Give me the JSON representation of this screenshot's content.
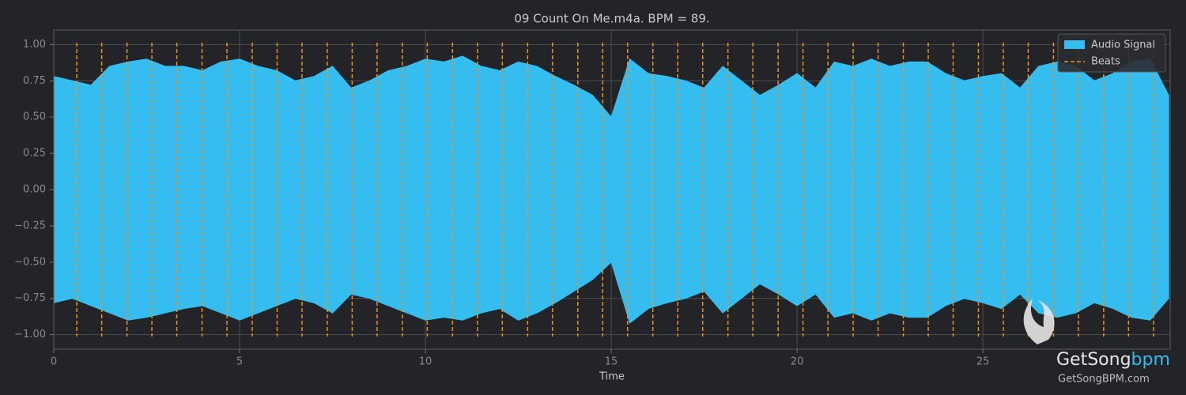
{
  "chart_data": {
    "type": "waveform",
    "title": "09 Count On Me.m4a. BPM =  89.",
    "xlabel": "Time",
    "x": [
      0,
      0.5,
      1,
      1.5,
      2,
      2.5,
      3,
      3.5,
      4,
      4.5,
      5,
      5.5,
      6,
      6.5,
      7,
      7.5,
      8,
      8.5,
      9,
      9.5,
      10,
      10.5,
      11,
      11.5,
      12,
      12.5,
      13,
      13.5,
      14,
      14.5,
      15,
      15.5,
      16,
      16.5,
      17,
      17.5,
      18,
      18.5,
      19,
      19.5,
      20,
      20.5,
      21,
      21.5,
      22,
      22.5,
      23,
      23.5,
      24,
      24.5,
      25,
      25.5,
      26,
      26.5,
      27,
      27.5,
      28,
      28.5,
      29,
      29.5,
      30
    ],
    "series": [
      {
        "name": "Audio Signal",
        "color": "#36bdf0",
        "upper": [
          0.78,
          0.75,
          0.72,
          0.85,
          0.88,
          0.9,
          0.85,
          0.85,
          0.82,
          0.88,
          0.9,
          0.85,
          0.82,
          0.75,
          0.78,
          0.85,
          0.7,
          0.75,
          0.82,
          0.85,
          0.9,
          0.88,
          0.92,
          0.85,
          0.82,
          0.88,
          0.85,
          0.78,
          0.72,
          0.65,
          0.5,
          0.9,
          0.8,
          0.78,
          0.75,
          0.7,
          0.85,
          0.75,
          0.65,
          0.72,
          0.8,
          0.7,
          0.88,
          0.85,
          0.9,
          0.85,
          0.88,
          0.88,
          0.8,
          0.75,
          0.78,
          0.8,
          0.7,
          0.85,
          0.88,
          0.85,
          0.75,
          0.8,
          0.88,
          0.9,
          0.65
        ],
        "lower": [
          -0.78,
          -0.75,
          -0.8,
          -0.85,
          -0.9,
          -0.88,
          -0.85,
          -0.82,
          -0.8,
          -0.85,
          -0.9,
          -0.85,
          -0.8,
          -0.75,
          -0.78,
          -0.85,
          -0.72,
          -0.75,
          -0.8,
          -0.85,
          -0.9,
          -0.88,
          -0.9,
          -0.85,
          -0.82,
          -0.9,
          -0.85,
          -0.78,
          -0.7,
          -0.62,
          -0.5,
          -0.92,
          -0.82,
          -0.78,
          -0.75,
          -0.7,
          -0.85,
          -0.75,
          -0.65,
          -0.72,
          -0.8,
          -0.72,
          -0.88,
          -0.85,
          -0.9,
          -0.85,
          -0.88,
          -0.88,
          -0.8,
          -0.75,
          -0.78,
          -0.82,
          -0.72,
          -0.85,
          -0.88,
          -0.85,
          -0.78,
          -0.82,
          -0.88,
          -0.9,
          -0.75
        ]
      },
      {
        "name": "Beats",
        "color": "#e8931f",
        "beats": [
          0.62,
          1.29,
          1.97,
          2.64,
          3.31,
          3.99,
          4.66,
          5.34,
          6.01,
          6.68,
          7.36,
          8.03,
          8.7,
          9.38,
          10.05,
          10.73,
          11.4,
          12.07,
          12.75,
          13.42,
          14.1,
          14.77,
          15.44,
          16.12,
          16.79,
          17.46,
          18.14,
          18.81,
          19.49,
          20.16,
          20.83,
          21.51,
          22.18,
          22.86,
          23.53,
          24.2,
          24.88,
          25.55,
          26.22,
          26.9,
          27.57,
          28.25,
          28.92,
          29.59
        ]
      }
    ],
    "xlim": [
      0,
      30.04
    ],
    "ylim": [
      -1.1,
      1.1
    ],
    "xticks": [
      0,
      5,
      10,
      15,
      20,
      25
    ],
    "yticks": [
      {
        "value": 1,
        "label": "1.00"
      },
      {
        "value": 0.75,
        "label": "0.75"
      },
      {
        "value": 0.5,
        "label": "0.50"
      },
      {
        "value": 0.25,
        "label": "0.25"
      },
      {
        "value": 0,
        "label": "0.00"
      },
      {
        "value": -0.25,
        "label": "−0.25"
      },
      {
        "value": -0.5,
        "label": "−0.50"
      },
      {
        "value": -0.75,
        "label": "−0.75"
      },
      {
        "value": -1,
        "label": "−1.00"
      }
    ],
    "grid": true,
    "legend": "upper right",
    "watermark": {
      "brand": "GetSong",
      "brand_accent": "bpm",
      "url": "GetSongBPM.com"
    }
  }
}
